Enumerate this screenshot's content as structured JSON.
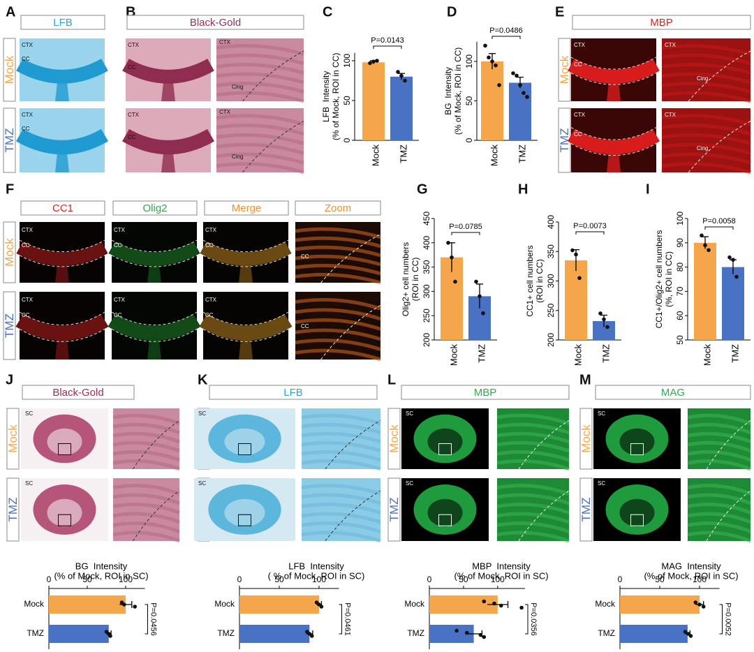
{
  "panels": [
    {
      "label": "A",
      "headers": [
        "LFB"
      ],
      "rows": [
        "Mock",
        "TMZ"
      ],
      "tags": [
        [
          "CTX",
          "CC"
        ],
        [
          "CTX",
          "CC"
        ]
      ]
    },
    {
      "label": "B",
      "headers": [
        "Black-Gold"
      ],
      "tags": [
        [
          "CTX",
          "CC",
          "CTX",
          "Cing"
        ],
        [
          "CTX",
          "CC",
          "CTX",
          "Cing"
        ]
      ]
    },
    {
      "label": "C"
    },
    {
      "label": "D"
    },
    {
      "label": "E",
      "headers": [
        "MBP"
      ],
      "rows": [
        "Mock",
        "TMZ"
      ],
      "tags": [
        [
          "CTX",
          "CC",
          "CTX",
          "Cing"
        ],
        [
          "CTX",
          "CC",
          "CTX",
          "Cing"
        ]
      ]
    },
    {
      "label": "F",
      "headers": [
        "CC1",
        "Olig2",
        "Merge",
        "Zoom"
      ],
      "rows": [
        "Mock",
        "TMZ"
      ],
      "tags": [
        [
          "CTX",
          "CC",
          "CTX",
          "CC",
          "CTX",
          "CC",
          "CC"
        ],
        [
          "CTX",
          "CC",
          "CTX",
          "CC",
          "CTX",
          "CC",
          "CC"
        ]
      ]
    },
    {
      "label": "G"
    },
    {
      "label": "H"
    },
    {
      "label": "I"
    },
    {
      "label": "J",
      "headers": [
        "Black-Gold"
      ],
      "rows": [
        "Mock",
        "TMZ"
      ],
      "tags": [
        [
          "SC"
        ],
        [
          "SC"
        ]
      ]
    },
    {
      "label": "K",
      "headers": [
        "LFB"
      ],
      "rows": [
        "Mock",
        "TMZ"
      ],
      "tags": [
        [
          "SC"
        ],
        [
          "SC"
        ]
      ]
    },
    {
      "label": "L",
      "headers": [
        "MBP"
      ],
      "rows": [
        "Mock",
        "TMZ"
      ],
      "tags": [
        [
          "SC"
        ],
        [
          "SC"
        ]
      ]
    },
    {
      "label": "M",
      "headers": [
        "MAG"
      ],
      "rows": [
        "Mock",
        "TMZ"
      ],
      "tags": [
        [
          "SC"
        ],
        [
          "SC"
        ]
      ]
    }
  ],
  "chart_data": [
    {
      "type": "bar",
      "ylabel": [
        "LFB  Intensity",
        "(% of Mock, ROI in CC)"
      ],
      "categories": [
        "Mock",
        "TMZ"
      ],
      "values": [
        98,
        80
      ],
      "errors": [
        2,
        4
      ],
      "points": [
        [
          97,
          99,
          100
        ],
        [
          86,
          81,
          75
        ]
      ],
      "colors": [
        "#f5a54a",
        "#4a72c4"
      ],
      "ylim": [
        0,
        110
      ],
      "yticks": [
        0,
        50,
        100
      ],
      "pvalue": "P=0.0143"
    },
    {
      "type": "bar",
      "ylabel": [
        "BG  Intensity",
        "(% of Mock, ROI in CC)"
      ],
      "categories": [
        "Mock",
        "TMZ"
      ],
      "values": [
        100,
        73
      ],
      "errors": [
        10,
        7
      ],
      "points": [
        [
          120,
          105,
          100,
          95,
          70
        ],
        [
          85,
          82,
          70,
          60,
          55
        ]
      ],
      "colors": [
        "#f5a54a",
        "#4a72c4"
      ],
      "ylim": [
        0,
        125
      ],
      "yticks": [
        0,
        50,
        100
      ],
      "pvalue": "P=0.0486"
    },
    {
      "type": "bar",
      "ylabel": [
        "Olig2+ cell numbers",
        "(ROI in CC)"
      ],
      "categories": [
        "Mock",
        "TMZ"
      ],
      "values": [
        370,
        290
      ],
      "errors": [
        30,
        25
      ],
      "points": [
        [
          400,
          370,
          320
        ],
        [
          320,
          290,
          255
        ]
      ],
      "colors": [
        "#f5a54a",
        "#4a72c4"
      ],
      "ylim": [
        200,
        450
      ],
      "yticks": [
        200,
        250,
        300,
        350,
        400,
        450
      ],
      "pvalue": "P=0.0785"
    },
    {
      "type": "bar",
      "ylabel": [
        "CC1+ cell numbers",
        "(ROI in CC)"
      ],
      "categories": [
        "Mock",
        "TMZ"
      ],
      "values": [
        335,
        232
      ],
      "errors": [
        18,
        10
      ],
      "points": [
        [
          352,
          345,
          305
        ],
        [
          245,
          235,
          222
        ]
      ],
      "colors": [
        "#f5a54a",
        "#4a72c4"
      ],
      "ylim": [
        200,
        400
      ],
      "yticks": [
        200,
        250,
        300,
        350,
        400
      ],
      "pvalue": "P=0.0073"
    },
    {
      "type": "bar",
      "ylabel": [
        "CC1+/Olig2+ cell numbers",
        "(%, ROI in CC)"
      ],
      "categories": [
        "Mock",
        "TMZ"
      ],
      "values": [
        90,
        80
      ],
      "errors": [
        2.5,
        3
      ],
      "points": [
        [
          93,
          89,
          87
        ],
        [
          84,
          83,
          76
        ]
      ],
      "colors": [
        "#f5a54a",
        "#4a72c4"
      ],
      "ylim": [
        50,
        100
      ],
      "yticks": [
        50,
        60,
        70,
        80,
        90,
        100
      ],
      "pvalue": "P=0.0058"
    },
    {
      "type": "barh",
      "title": [
        "BG  Intensity",
        "(% of Mock, ROI in SC)"
      ],
      "categories": [
        "Mock",
        "TMZ"
      ],
      "values": [
        100,
        78
      ],
      "errors": [
        8,
        3
      ],
      "points": [
        [
          95,
          98,
          112
        ],
        [
          75,
          78,
          80
        ]
      ],
      "colors": [
        "#f5a54a",
        "#4a72c4"
      ],
      "xlim": [
        0,
        125
      ],
      "xticks": [
        0,
        50,
        100
      ],
      "pvalue": "P=0.0456"
    },
    {
      "type": "barh",
      "title": [
        "LFB  Intensity",
        "( % of Mock, ROI in SC)"
      ],
      "categories": [
        "Mock",
        "TMZ"
      ],
      "values": [
        100,
        88
      ],
      "errors": [
        3,
        4
      ],
      "points": [
        [
          97,
          100,
          103
        ],
        [
          85,
          88,
          91
        ]
      ],
      "colors": [
        "#f5a54a",
        "#4a72c4"
      ],
      "xlim": [
        0,
        125
      ],
      "xticks": [
        0,
        50,
        100
      ],
      "pvalue": "P=0.0461"
    },
    {
      "type": "barh",
      "title": [
        "MBP  Intensity",
        "(% of Mock, ROI in SC)"
      ],
      "categories": [
        "Mock",
        "TMZ"
      ],
      "values": [
        100,
        65
      ],
      "errors": [
        15,
        12
      ],
      "points": [
        [
          80,
          95,
          105,
          135
        ],
        [
          40,
          55,
          75,
          80
        ]
      ],
      "colors": [
        "#f5a54a",
        "#4a72c4"
      ],
      "xlim": [
        0,
        140
      ],
      "xticks": [
        0,
        50,
        100
      ],
      "pvalue": "P=0.0356"
    },
    {
      "type": "barh",
      "title": [
        "MAG  Intensity",
        "(% of Mock, ROI in SC)"
      ],
      "categories": [
        "Mock",
        "TMZ"
      ],
      "values": [
        100,
        85
      ],
      "errors": [
        5,
        3
      ],
      "points": [
        [
          95,
          100,
          105
        ],
        [
          82,
          86,
          89
        ]
      ],
      "colors": [
        "#f5a54a",
        "#4a72c4"
      ],
      "xlim": [
        0,
        125
      ],
      "xticks": [
        0,
        50,
        100
      ],
      "pvalue": "P=0.0052"
    }
  ]
}
